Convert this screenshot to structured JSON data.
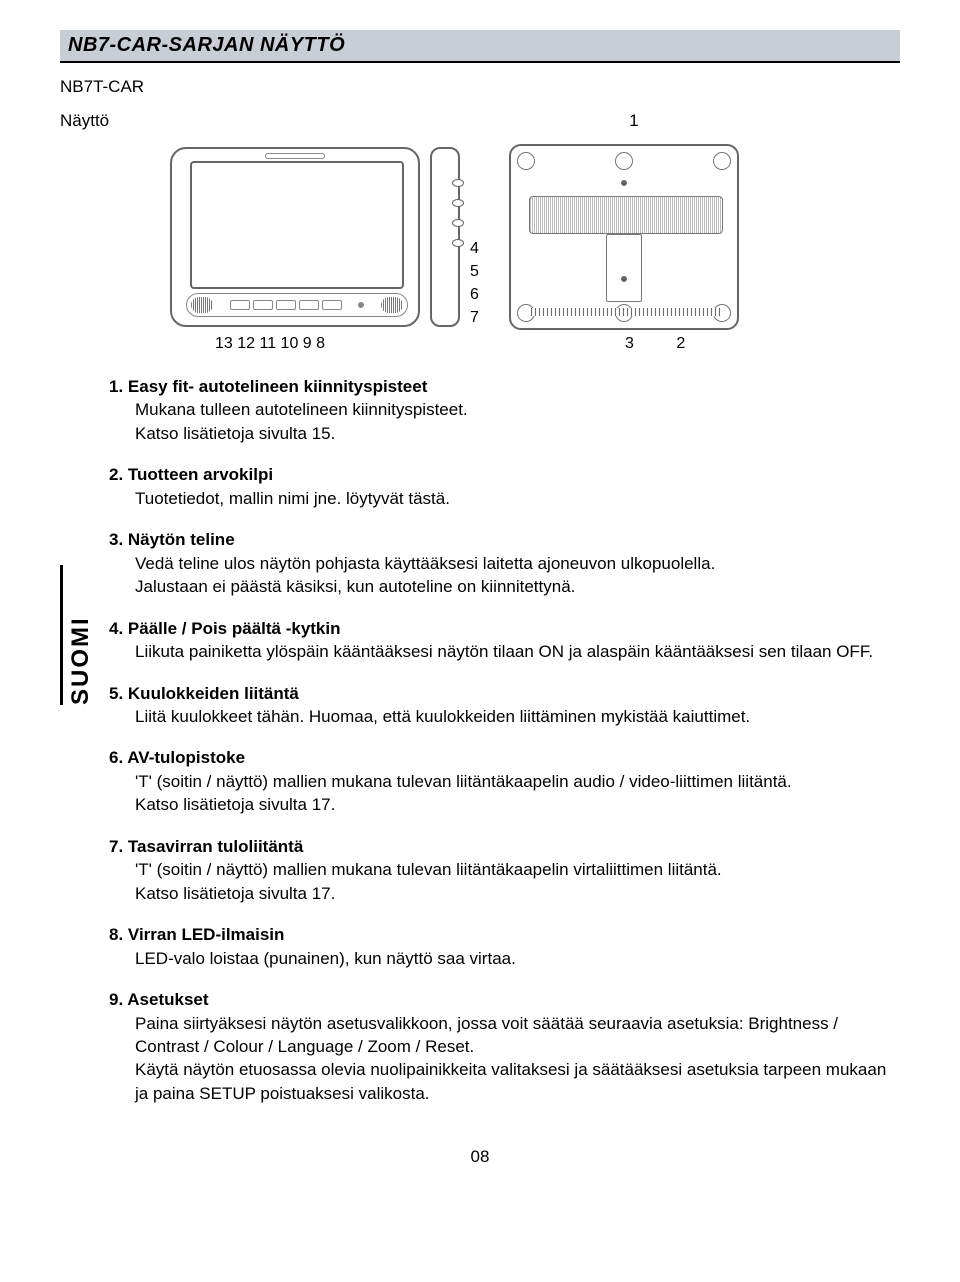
{
  "header": {
    "title": "NB7-CAR-SARJAN NÄYTTÖ"
  },
  "model": "NB7T-CAR",
  "subtitle": "Näyttö",
  "lang_tab": "SUOMI",
  "page_number": "08",
  "diagram": {
    "top_callout": "1",
    "side_callouts": [
      "4",
      "5",
      "6",
      "7"
    ],
    "bottom_left": "13 12    11 10 9  8",
    "bottom_right_a": "3",
    "bottom_right_b": "2"
  },
  "items": [
    {
      "num": "1.",
      "name": "Easy fit- autotelineen kiinnityspisteet",
      "desc": "Mukana tulleen autotelineen kiinnityspisteet.\nKatso lisätietoja sivulta 15."
    },
    {
      "num": "2.",
      "name": "Tuotteen arvokilpi",
      "desc": "Tuotetiedot, mallin nimi jne. löytyvät tästä."
    },
    {
      "num": "3.",
      "name": "Näytön teline",
      "desc": "Vedä teline ulos näytön pohjasta käyttääksesi laitetta ajoneuvon ulkopuolella.\nJalustaan ei päästä käsiksi, kun autoteline on kiinnitettynä."
    },
    {
      "num": "4.",
      "name": "Päälle / Pois päältä -kytkin",
      "desc": "Liikuta painiketta ylöspäin kääntääksesi näytön tilaan ON ja alaspäin kääntääksesi sen tilaan OFF."
    },
    {
      "num": "5.",
      "name": "Kuulokkeiden liitäntä",
      "desc": "Liitä kuulokkeet tähän. Huomaa, että kuulokkeiden liittäminen mykistää kaiuttimet."
    },
    {
      "num": "6.",
      "name": "AV-tulopistoke",
      "desc": "'T' (soitin / näyttö) mallien mukana tulevan liitäntäkaapelin audio / video-liittimen liitäntä.\nKatso lisätietoja sivulta 17."
    },
    {
      "num": "7.",
      "name": "Tasavirran tuloliitäntä",
      "desc": "'T' (soitin / näyttö) mallien mukana tulevan liitäntäkaapelin virtaliittimen liitäntä.\nKatso lisätietoja sivulta 17."
    },
    {
      "num": "8.",
      "name": "Virran LED-ilmaisin",
      "desc": "LED-valo loistaa (punainen), kun näyttö saa virtaa."
    },
    {
      "num": "9.",
      "name": "Asetukset",
      "desc": "Paina siirtyäksesi näytön asetusvalikkoon, jossa voit säätää seuraavia asetuksia: Brightness / Contrast / Colour / Language / Zoom / Reset.\nKäytä näytön etuosassa olevia nuolipainikkeita valitaksesi ja säätääksesi asetuksia tarpeen mukaan ja paina SETUP poistuaksesi valikosta."
    }
  ]
}
